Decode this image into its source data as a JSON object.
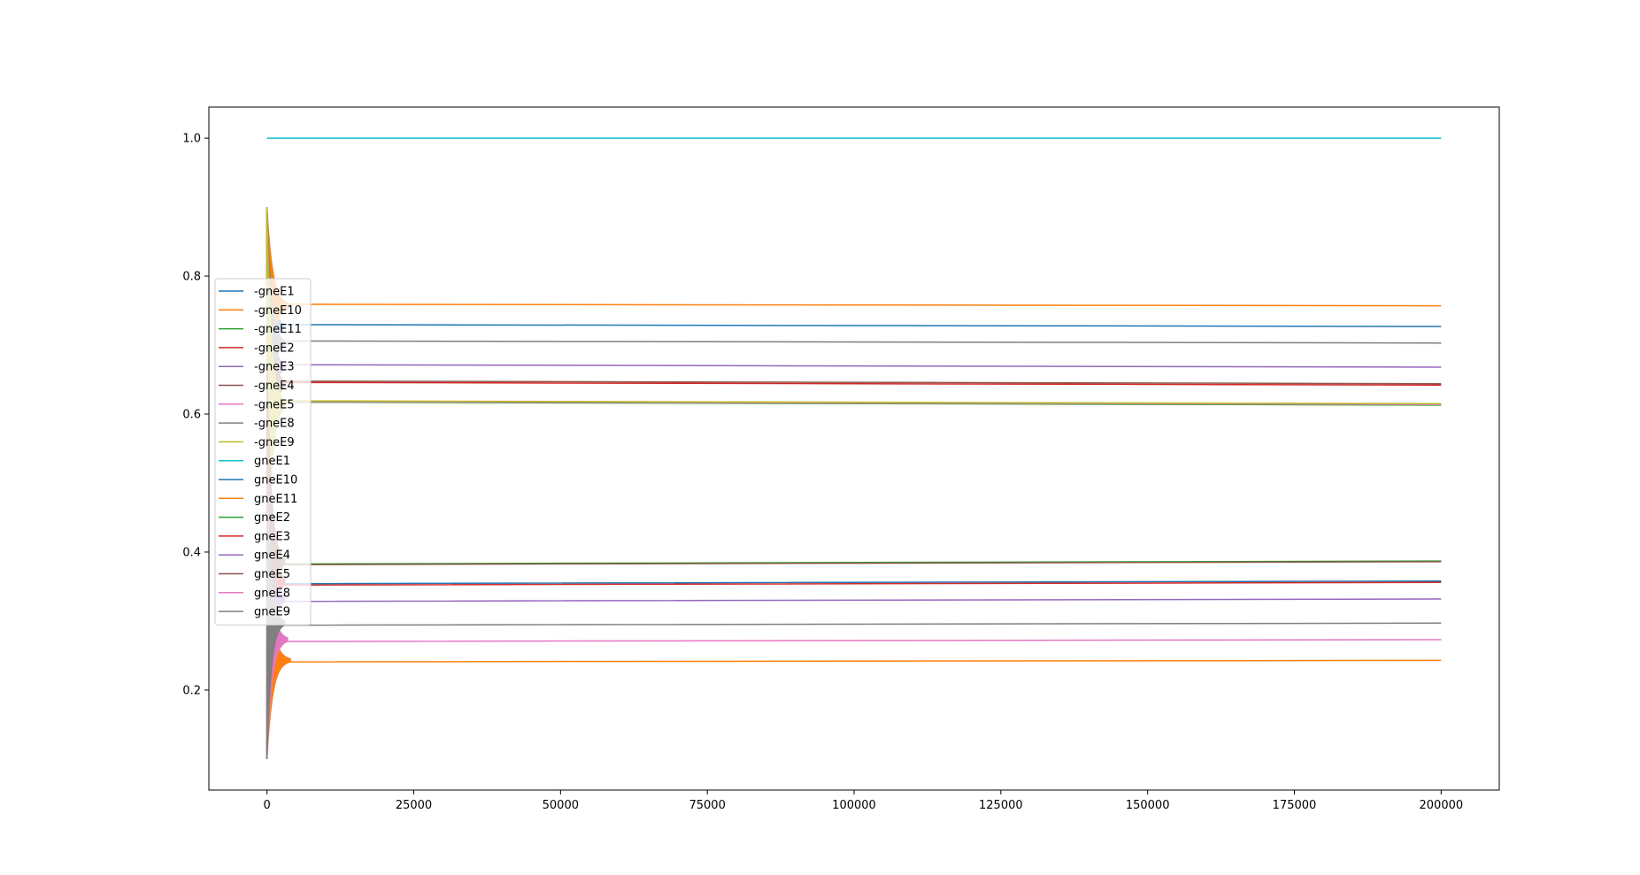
{
  "chart_data": {
    "type": "line",
    "title": "",
    "xlabel": "",
    "ylabel": "",
    "xlim": [
      -9900,
      209900
    ],
    "ylim": [
      0.055,
      1.045
    ],
    "grid": false,
    "legend_position": "center-left",
    "x_ticks": [
      0,
      25000,
      50000,
      75000,
      100000,
      125000,
      150000,
      175000,
      200000
    ],
    "x_tick_labels": [
      "0",
      "25000",
      "50000",
      "75000",
      "100000",
      "125000",
      "150000",
      "175000",
      "200000"
    ],
    "y_ticks": [
      0.2,
      0.4,
      0.6,
      0.8,
      1.0
    ],
    "y_tick_labels": [
      "0.2",
      "0.4",
      "0.6",
      "0.8",
      "1.0"
    ],
    "series": [
      {
        "name": "-gneE1",
        "color": "#1f77b4",
        "start": 0.9,
        "steady": 0.727,
        "settle_x": 3000
      },
      {
        "name": "-gneE10",
        "color": "#ff7f0e",
        "start": 0.9,
        "steady": 0.757,
        "settle_x": 4000
      },
      {
        "name": "-gneE11",
        "color": "#2ca02c",
        "start": 0.9,
        "steady": 0.613,
        "settle_x": 3000
      },
      {
        "name": "-gneE2",
        "color": "#d62728",
        "start": 0.9,
        "steady": 0.642,
        "settle_x": 3000
      },
      {
        "name": "-gneE3",
        "color": "#9467bd",
        "start": 0.9,
        "steady": 0.668,
        "settle_x": 3000
      },
      {
        "name": "-gneE4",
        "color": "#8c564b",
        "start": 0.9,
        "steady": 0.644,
        "settle_x": 3000
      },
      {
        "name": "-gneE5",
        "color": "#e377c2",
        "start": 0.9,
        "steady": 0.614,
        "settle_x": 3000
      },
      {
        "name": "-gneE8",
        "color": "#7f7f7f",
        "start": 0.9,
        "steady": 0.703,
        "settle_x": 3000
      },
      {
        "name": "-gneE9",
        "color": "#bcbd22",
        "start": 0.9,
        "steady": 0.615,
        "settle_x": 3000
      },
      {
        "name": "gneE1",
        "color": "#17becf",
        "start": 1.0,
        "steady": 1.0,
        "settle_x": 0
      },
      {
        "name": "gneE10",
        "color": "#1f77b4",
        "start": 0.1,
        "steady": 0.358,
        "settle_x": 3000
      },
      {
        "name": "gneE11",
        "color": "#ff7f0e",
        "start": 0.1,
        "steady": 0.243,
        "settle_x": 4000
      },
      {
        "name": "gneE2",
        "color": "#2ca02c",
        "start": 0.1,
        "steady": 0.387,
        "settle_x": 3000
      },
      {
        "name": "gneE3",
        "color": "#d62728",
        "start": 0.1,
        "steady": 0.356,
        "settle_x": 3000
      },
      {
        "name": "gneE4",
        "color": "#9467bd",
        "start": 0.1,
        "steady": 0.332,
        "settle_x": 3000
      },
      {
        "name": "gneE5",
        "color": "#8c564b",
        "start": 0.1,
        "steady": 0.386,
        "settle_x": 3000
      },
      {
        "name": "gneE8",
        "color": "#e377c2",
        "start": 0.1,
        "steady": 0.273,
        "settle_x": 3500
      },
      {
        "name": "gneE9",
        "color": "#7f7f7f",
        "start": 0.1,
        "steady": 0.297,
        "settle_x": 3000
      }
    ]
  }
}
